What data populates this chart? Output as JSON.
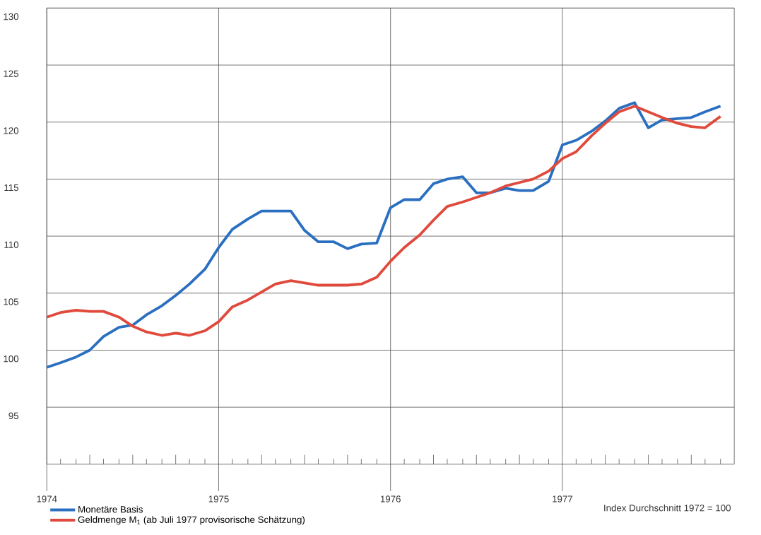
{
  "chart_data": {
    "type": "line",
    "x": [
      "1974-01",
      "1974-02",
      "1974-03",
      "1974-04",
      "1974-05",
      "1974-06",
      "1974-07",
      "1974-08",
      "1974-09",
      "1974-10",
      "1974-11",
      "1974-12",
      "1975-01",
      "1975-02",
      "1975-03",
      "1975-04",
      "1975-05",
      "1975-06",
      "1975-07",
      "1975-08",
      "1975-09",
      "1975-10",
      "1975-11",
      "1975-12",
      "1976-01",
      "1976-02",
      "1976-03",
      "1976-04",
      "1976-05",
      "1976-06",
      "1976-07",
      "1976-08",
      "1976-09",
      "1976-10",
      "1976-11",
      "1976-12",
      "1977-01",
      "1977-02",
      "1977-03",
      "1977-04",
      "1977-05",
      "1977-06",
      "1977-07",
      "1977-08",
      "1977-09",
      "1977-10",
      "1977-11",
      "1977-12"
    ],
    "series": [
      {
        "name": "Monetäre Basis",
        "color": "#2a6fc0",
        "values": [
          98.5,
          98.9,
          99.4,
          100.0,
          101.2,
          102.0,
          102.2,
          103.1,
          103.9,
          104.8,
          105.8,
          107.1,
          109.0,
          110.6,
          111.5,
          112.2,
          112.2,
          112.2,
          110.5,
          109.5,
          109.5,
          108.9,
          109.3,
          109.4,
          112.5,
          113.2,
          113.2,
          114.6,
          115.0,
          115.2,
          113.8,
          113.8,
          114.2,
          114.0,
          114.0,
          114.8,
          118.0,
          118.4,
          119.2,
          120.1,
          121.2,
          121.7,
          119.5,
          120.2,
          120.3,
          120.4,
          120.9,
          121.4
        ]
      },
      {
        "name": "Geldmenge M$_{1}$ (ab Juli 1977 provisorische Schätzung)",
        "color": "#e04a3c",
        "values": [
          102.9,
          103.3,
          103.5,
          103.4,
          103.4,
          102.9,
          102.1,
          101.6,
          101.3,
          101.5,
          101.3,
          101.7,
          102.5,
          103.8,
          104.4,
          105.1,
          105.8,
          106.1,
          105.9,
          105.7,
          105.7,
          105.7,
          105.8,
          106.4,
          107.8,
          109.0,
          110.1,
          111.4,
          112.6,
          113.0,
          113.4,
          113.8,
          114.4,
          114.7,
          115.0,
          115.7,
          116.8,
          117.4,
          118.8,
          119.9,
          120.9,
          121.4,
          120.9,
          120.4,
          119.9,
          119.6,
          119.5,
          120.5
        ]
      }
    ],
    "xlim": [
      "1974-01",
      "1978-01"
    ],
    "xticks": [
      {
        "value": "1974-01",
        "label": "1974"
      },
      {
        "value": "1975-01",
        "label": "1975"
      },
      {
        "value": "1976-01",
        "label": "1976"
      },
      {
        "value": "1977-01",
        "label": "1977"
      }
    ],
    "ylim": [
      90,
      130
    ],
    "yticks": [
      95,
      100,
      105,
      110,
      115,
      120,
      125,
      130
    ],
    "grid": true,
    "legend": "bottom left",
    "marker": "none",
    "line_style": "solid",
    "annotations": [
      "Index Durchschnitt 1972 = 100"
    ]
  }
}
